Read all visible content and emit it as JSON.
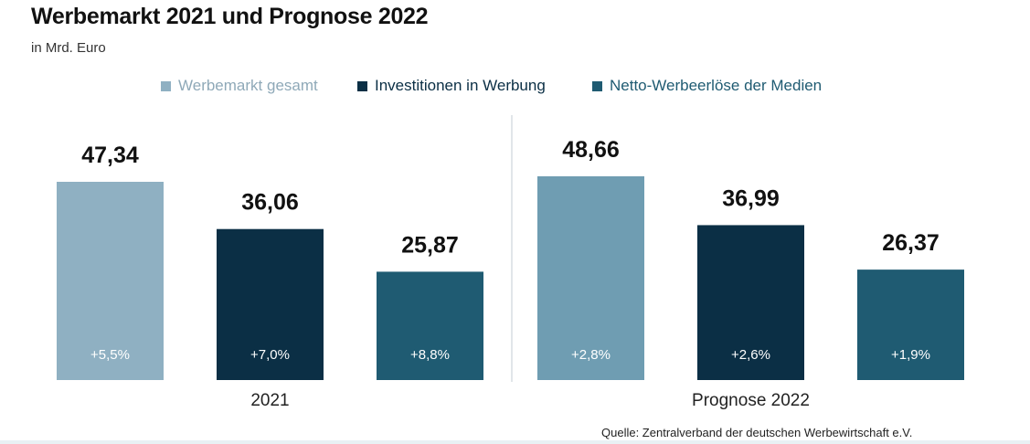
{
  "chart_data": {
    "type": "bar",
    "title": "Werbemarkt 2021 und Prognose 2022",
    "subtitle": "in Mrd. Euro",
    "categories": [
      "2021",
      "Prognose 2022"
    ],
    "series": [
      {
        "name": "Werbemarkt gesamt",
        "color": "#8fb0c2",
        "values": [
          47.34,
          48.66
        ],
        "value_labels": [
          "47,34",
          "48,66"
        ],
        "change_labels": [
          "+5,5%",
          "+2,8%"
        ]
      },
      {
        "name": "Investitionen in Werbung",
        "color": "#0b2f45",
        "values": [
          36.06,
          36.99
        ],
        "value_labels": [
          "36,06",
          "36,99"
        ],
        "change_labels": [
          "+7,0%",
          "+2,6%"
        ]
      },
      {
        "name": "Netto-Werbeerlöse der Medien",
        "color": "#1f5b72",
        "values": [
          25.87,
          26.37
        ],
        "value_labels": [
          "25,87",
          "26,37"
        ],
        "change_labels": [
          "+8,8%",
          "+1,9%"
        ]
      }
    ],
    "legend_position": "top-center",
    "grid": false,
    "ylim": [
      0,
      50
    ]
  },
  "source": "Quelle: Zentralverband  der deutschen Werbewirtschaft  e.V.",
  "colors": {
    "group_2022_first_series": "#6f9db2",
    "legend_text_first_series": "#8fa9b8",
    "separator": "#d7dee2",
    "change_label_text": "#ffffff"
  }
}
